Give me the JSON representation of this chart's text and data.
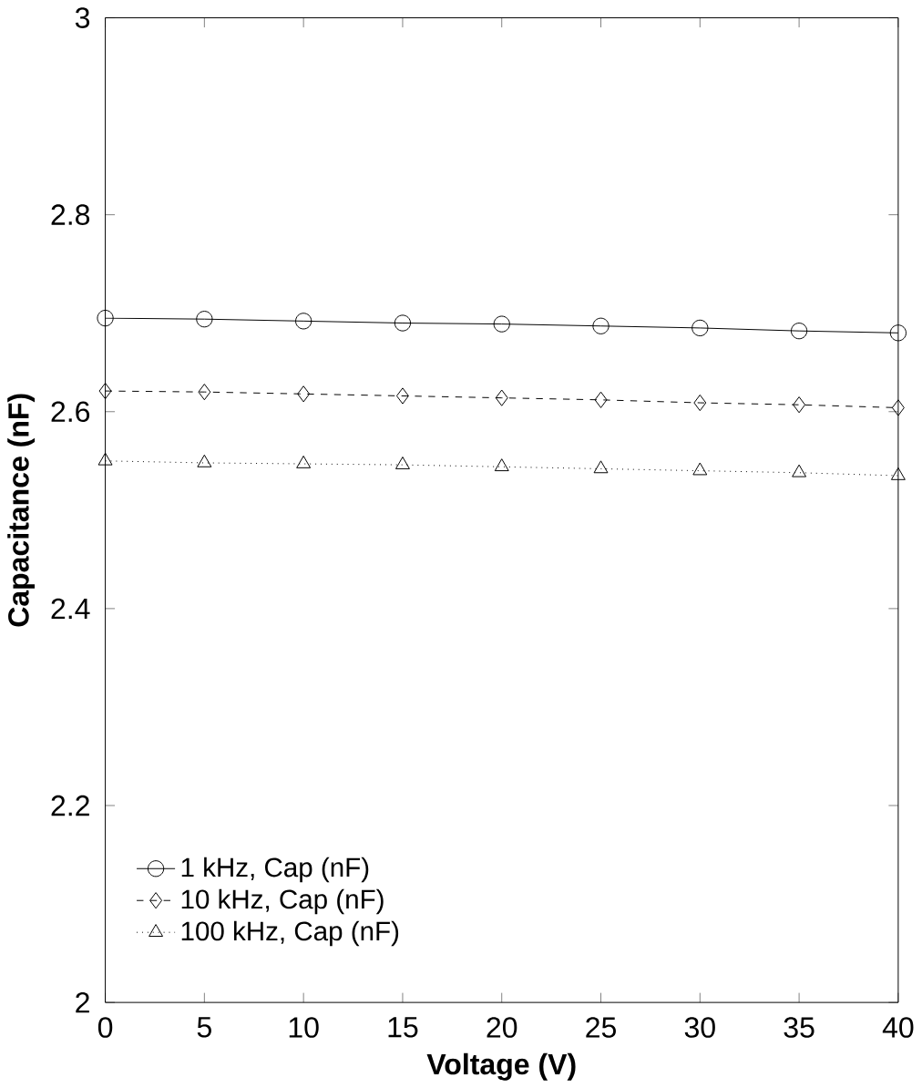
{
  "chart_data": {
    "type": "line",
    "xlabel": "Voltage (V)",
    "ylabel": "Capacitance (nF)",
    "x": [
      0,
      5,
      10,
      15,
      20,
      25,
      30,
      35,
      40
    ],
    "xlim": [
      0,
      40
    ],
    "xticks": [
      0,
      5,
      10,
      15,
      20,
      25,
      30,
      35,
      40
    ],
    "ylim": [
      2,
      3
    ],
    "yticks": [
      2,
      2.2,
      2.4,
      2.6,
      2.8,
      3
    ],
    "grid": false,
    "legend": "bottom left",
    "series": [
      {
        "name": "1 kHz, Cap (nF)",
        "color": "#000000",
        "marker": "circle",
        "line_style": "solid",
        "values": [
          2.695,
          2.694,
          2.692,
          2.69,
          2.689,
          2.687,
          2.685,
          2.682,
          2.68
        ]
      },
      {
        "name": "10 kHz, Cap (nF)",
        "color": "#000000",
        "marker": "diamond",
        "line_style": "dashed",
        "values": [
          2.621,
          2.62,
          2.618,
          2.616,
          2.614,
          2.612,
          2.609,
          2.607,
          2.604
        ]
      },
      {
        "name": "100 kHz, Cap (nF)",
        "color": "#000000",
        "marker": "triangle",
        "line_style": "dotted",
        "values": [
          2.55,
          2.548,
          2.547,
          2.546,
          2.544,
          2.542,
          2.54,
          2.538,
          2.535
        ]
      }
    ]
  }
}
